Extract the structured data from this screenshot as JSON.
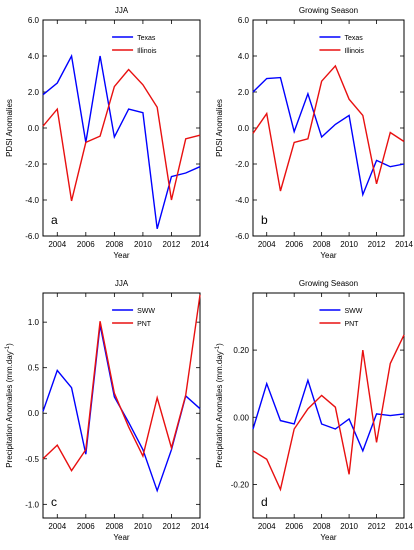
{
  "chart_data": [
    {
      "id": "a",
      "type": "line",
      "title": "JJA",
      "panel_label": "a",
      "xlabel": "Year",
      "ylabel": "PDSI Anomalies",
      "xlim": [
        2003,
        2014
      ],
      "ylim": [
        -6,
        6
      ],
      "x": [
        2003,
        2004,
        2005,
        2006,
        2007,
        2008,
        2009,
        2010,
        2011,
        2012,
        2013,
        2014
      ],
      "xticks": [
        2004,
        2006,
        2008,
        2010,
        2012,
        2014
      ],
      "xtick_labels": [
        "2004",
        "2006",
        "2008",
        "2010",
        "2012",
        "2014"
      ],
      "yticks": [
        -6,
        -4,
        -2,
        0,
        2,
        4,
        6
      ],
      "ytick_labels": [
        "-6.0",
        "-4.0",
        "-2.0",
        "0.0",
        "2.0",
        "4.0",
        "6.0"
      ],
      "legend": "top-right",
      "series": [
        {
          "name": "Texas",
          "color": "#0000ff",
          "values": [
            1.85,
            2.5,
            4.0,
            -0.8,
            4.0,
            -0.5,
            1.05,
            0.85,
            -5.6,
            -2.7,
            -2.5,
            -2.15
          ]
        },
        {
          "name": "Illinois",
          "color": "#e81010",
          "values": [
            0.1,
            1.05,
            -4.05,
            -0.8,
            -0.45,
            2.3,
            3.25,
            2.4,
            1.15,
            -4.0,
            -0.6,
            -0.4
          ]
        }
      ]
    },
    {
      "id": "b",
      "type": "line",
      "title": "Growing Season",
      "panel_label": "b",
      "xlabel": "Year",
      "ylabel": "PDSI Anomalies",
      "xlim": [
        2003,
        2014
      ],
      "ylim": [
        -6,
        6
      ],
      "x": [
        2003,
        2004,
        2005,
        2006,
        2007,
        2008,
        2009,
        2010,
        2011,
        2012,
        2013,
        2014
      ],
      "xticks": [
        2004,
        2006,
        2008,
        2010,
        2012,
        2014
      ],
      "xtick_labels": [
        "2004",
        "2006",
        "2008",
        "2010",
        "2012",
        "2014"
      ],
      "yticks": [
        -6,
        -4,
        -2,
        0,
        2,
        4,
        6
      ],
      "ytick_labels": [
        "-6.0",
        "-4.0",
        "-2.0",
        "0.0",
        "2.0",
        "4.0",
        "6.0"
      ],
      "legend": "top-right",
      "series": [
        {
          "name": "Texas",
          "color": "#0000ff",
          "values": [
            2.0,
            2.75,
            2.8,
            -0.2,
            1.9,
            -0.5,
            0.2,
            0.7,
            -3.7,
            -1.8,
            -2.15,
            -2.0
          ]
        },
        {
          "name": "Illinois",
          "color": "#e81010",
          "values": [
            -0.3,
            0.8,
            -3.5,
            -0.8,
            -0.6,
            2.6,
            3.45,
            1.6,
            0.7,
            -3.1,
            -0.25,
            -0.75
          ]
        }
      ]
    },
    {
      "id": "c",
      "type": "line",
      "title": "JJA",
      "panel_label": "c",
      "xlabel": "Year",
      "ylabel": "Precipitation Anomalies (mm.day",
      "ylabel_sup": "-1",
      "ylabel_end": ")",
      "xlim": [
        2003,
        2014
      ],
      "ylim": [
        -1.15,
        1.32
      ],
      "x": [
        2003,
        2004,
        2005,
        2006,
        2007,
        2008,
        2009,
        2010,
        2011,
        2012,
        2013,
        2014
      ],
      "xticks": [
        2004,
        2006,
        2008,
        2010,
        2012,
        2014
      ],
      "xtick_labels": [
        "2004",
        "2006",
        "2008",
        "2010",
        "2012",
        "2014"
      ],
      "yticks": [
        -1.0,
        -0.5,
        0.0,
        0.5,
        1.0
      ],
      "ytick_labels": [
        "-1.0",
        "-0.5",
        "0.0",
        "0.5",
        "1.0"
      ],
      "legend": "top-right",
      "series": [
        {
          "name": "SWW",
          "color": "#0000ff",
          "values": [
            0.02,
            0.47,
            0.28,
            -0.45,
            0.97,
            0.18,
            -0.1,
            -0.4,
            -0.85,
            -0.4,
            0.19,
            0.05
          ]
        },
        {
          "name": "PNT",
          "color": "#e81010",
          "values": [
            -0.5,
            -0.35,
            -0.63,
            -0.4,
            1.01,
            0.22,
            -0.15,
            -0.47,
            0.17,
            -0.38,
            0.2,
            1.3
          ]
        }
      ]
    },
    {
      "id": "d",
      "type": "line",
      "title": "Growing Season",
      "panel_label": "d",
      "xlabel": "Year",
      "ylabel": "Precipitation Anomalies (mm.day",
      "ylabel_sup": "-1",
      "ylabel_end": ")",
      "xlim": [
        2003,
        2014
      ],
      "ylim": [
        -0.3,
        0.37
      ],
      "x": [
        2003,
        2004,
        2005,
        2006,
        2007,
        2008,
        2009,
        2010,
        2011,
        2012,
        2013,
        2014
      ],
      "xticks": [
        2004,
        2006,
        2008,
        2010,
        2012,
        2014
      ],
      "xtick_labels": [
        "2004",
        "2006",
        "2008",
        "2010",
        "2012",
        "2014"
      ],
      "yticks": [
        -0.2,
        0.0,
        0.2
      ],
      "ytick_labels": [
        "-0.20",
        "0.00",
        "0.20"
      ],
      "legend": "top-right",
      "series": [
        {
          "name": "SWW",
          "color": "#0000ff",
          "values": [
            -0.035,
            0.1,
            -0.01,
            -0.02,
            0.11,
            -0.02,
            -0.035,
            -0.005,
            -0.1,
            0.01,
            0.005,
            0.01
          ]
        },
        {
          "name": "PNT",
          "color": "#e81010",
          "values": [
            -0.1,
            -0.125,
            -0.215,
            -0.035,
            0.025,
            0.065,
            0.03,
            -0.17,
            0.2,
            -0.075,
            0.16,
            0.245
          ]
        }
      ]
    }
  ]
}
